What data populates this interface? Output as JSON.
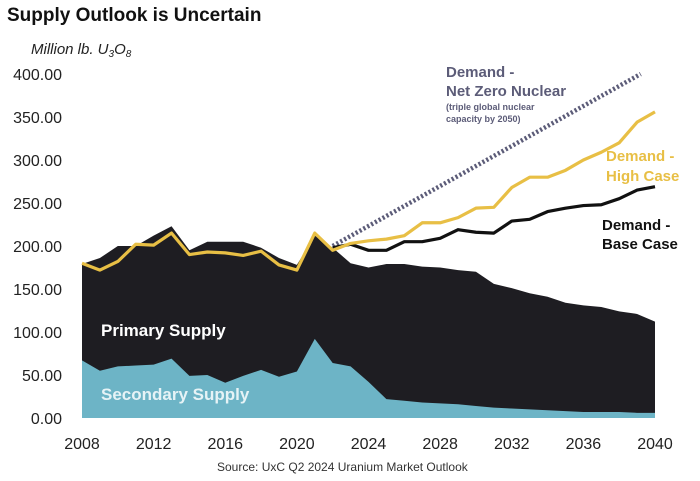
{
  "chart_data": {
    "type": "area",
    "title": "Supply Outlook is Uncertain",
    "ylabel": "Million lb. U3O8",
    "ylabel_main": "Million lb. U",
    "ylabel_sub1": "3",
    "ylabel_mid": "O",
    "ylabel_sub2": "8",
    "xlabel": "",
    "source": "Source: UxC Q2 2024 Uranium Market Outlook",
    "ylim": [
      0,
      400
    ],
    "xlim": [
      2008,
      2040
    ],
    "yticks": [
      "400.00",
      "350.00",
      "300.00",
      "250.00",
      "200.00",
      "150.00",
      "100.00",
      "50.00",
      "0.00"
    ],
    "ytick_values": [
      400,
      350,
      300,
      250,
      200,
      150,
      100,
      50,
      0
    ],
    "xticks": [
      "2008",
      "2012",
      "2016",
      "2020",
      "2024",
      "2028",
      "2032",
      "2036",
      "2040"
    ],
    "xtick_values": [
      2008,
      2012,
      2016,
      2020,
      2024,
      2028,
      2032,
      2036,
      2040
    ],
    "grid": false,
    "x": [
      2008,
      2009,
      2010,
      2011,
      2012,
      2013,
      2014,
      2015,
      2016,
      2017,
      2018,
      2019,
      2020,
      2021,
      2022,
      2023,
      2024,
      2025,
      2026,
      2027,
      2028,
      2029,
      2030,
      2031,
      2032,
      2033,
      2034,
      2035,
      2036,
      2037,
      2038,
      2039,
      2040
    ],
    "series": [
      {
        "name": "Secondary Supply",
        "kind": "stacked-area",
        "color": "#6db4c6",
        "values": [
          67,
          55,
          60,
          61,
          62,
          69,
          49,
          50,
          41,
          49,
          56,
          48,
          54,
          92,
          64,
          60,
          42,
          22,
          20,
          18,
          17,
          16,
          14,
          12,
          11,
          10,
          9,
          8,
          7,
          7,
          7,
          6,
          6
        ]
      },
      {
        "name": "Primary Supply",
        "kind": "stacked-area",
        "color": "#1e1d22",
        "total_values": [
          179,
          186,
          200,
          200,
          212,
          223,
          195,
          205,
          205,
          205,
          198,
          186,
          178,
          212,
          198,
          180,
          175,
          179,
          179,
          176,
          175,
          172,
          170,
          156,
          151,
          145,
          141,
          134,
          131,
          129,
          124,
          121,
          112
        ]
      },
      {
        "name": "Demand - High Case",
        "kind": "line",
        "color": "#e8bf45",
        "values": [
          180,
          172,
          182,
          202,
          201,
          215,
          190,
          193,
          192,
          189,
          194,
          178,
          172,
          215,
          195,
          203,
          206,
          208,
          212,
          227,
          227,
          233,
          244,
          245,
          268,
          280,
          280,
          288,
          300,
          309,
          320,
          344,
          356
        ]
      },
      {
        "name": "Demand - Base Case",
        "kind": "line",
        "color": "#111111",
        "x_start": 2022,
        "values": [
          198,
          202,
          195,
          195,
          205,
          205,
          209,
          219,
          216,
          215,
          229,
          231,
          240,
          244,
          247,
          248,
          255,
          265,
          269
        ]
      },
      {
        "name": "Demand - Net Zero Nuclear",
        "kind": "dotted-line",
        "color": "#5c5c78",
        "x": [
          2022,
          2039.2
        ],
        "values": [
          200,
          400
        ]
      }
    ],
    "annotations": {
      "net_zero_line1": "Demand -",
      "net_zero_line2": "Net Zero Nuclear",
      "net_zero_note1": "(triple global nuclear",
      "net_zero_note2": "capacity by 2050)",
      "high_line1": "Demand -",
      "high_line2": "High Case",
      "base_line1": "Demand -",
      "base_line2": "Base Case",
      "primary_label": "Primary Supply",
      "secondary_label": "Secondary Supply"
    }
  }
}
